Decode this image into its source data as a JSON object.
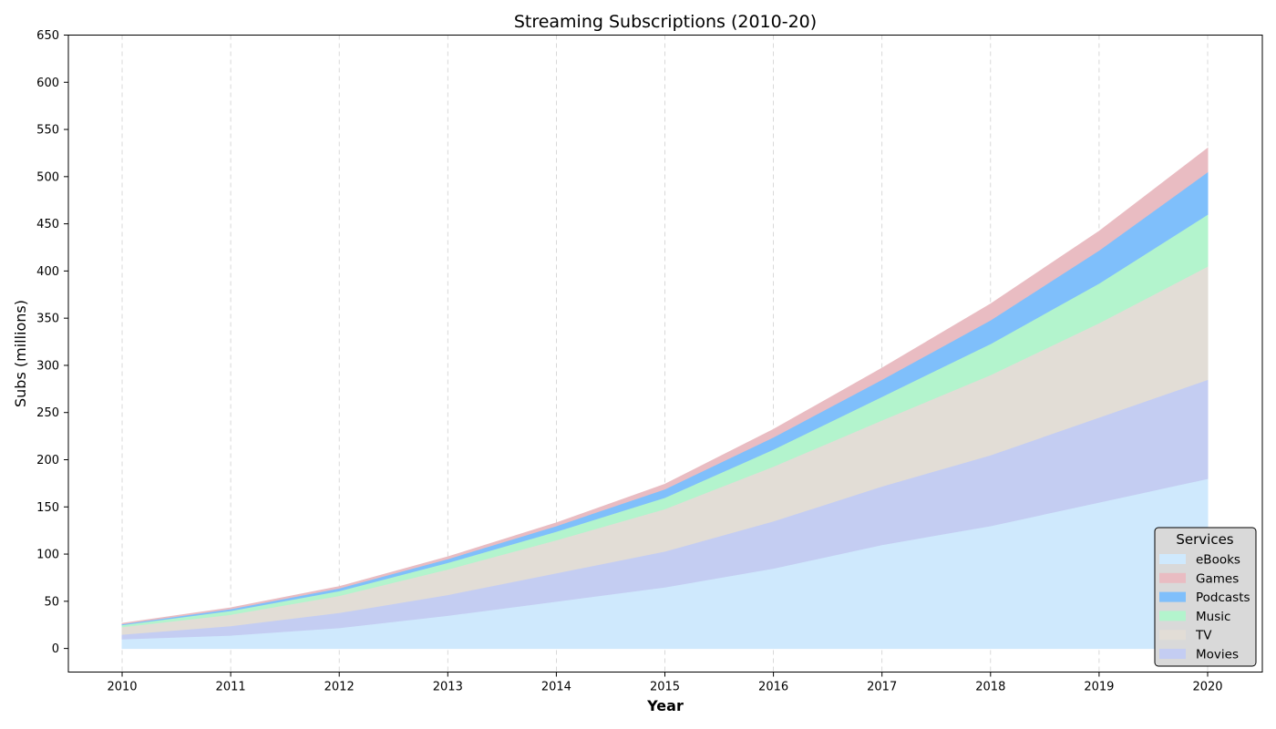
{
  "chart_data": {
    "type": "area",
    "stacked": true,
    "title": "Streaming Subscriptions (2010-20)",
    "xlabel": "Year",
    "ylabel": "Subs (millions)",
    "x": [
      2010,
      2011,
      2012,
      2013,
      2014,
      2015,
      2016,
      2017,
      2018,
      2019,
      2020
    ],
    "xticks": [
      "2010",
      "2011",
      "2012",
      "2013",
      "2014",
      "2015",
      "2016",
      "2017",
      "2018",
      "2019",
      "2020"
    ],
    "ylim": [
      -25,
      650
    ],
    "yticks": [
      0,
      50,
      100,
      150,
      200,
      250,
      300,
      350,
      400,
      450,
      500,
      550,
      600,
      650
    ],
    "grid": "vertical dashed",
    "legend": {
      "title": "Services",
      "position": "bottom-right"
    },
    "series": [
      {
        "name": "eBooks",
        "color": "#cfe9fd",
        "values": [
          10,
          14,
          22,
          35,
          50,
          65,
          85,
          110,
          130,
          155,
          180
        ]
      },
      {
        "name": "Movies",
        "color": "#c4cdf2",
        "values": [
          5,
          10,
          16,
          22,
          30,
          38,
          50,
          62,
          75,
          90,
          105
        ]
      },
      {
        "name": "TV",
        "color": "#e2ddd6",
        "values": [
          8,
          12,
          18,
          27,
          35,
          45,
          58,
          70,
          85,
          100,
          120
        ]
      },
      {
        "name": "Music",
        "color": "#b3f4cd",
        "values": [
          2,
          4,
          5,
          7,
          9,
          12,
          18,
          25,
          33,
          42,
          55
        ]
      },
      {
        "name": "Podcasts",
        "color": "#7fbffb",
        "values": [
          1,
          2,
          3,
          4,
          6,
          9,
          13,
          18,
          25,
          35,
          45
        ]
      },
      {
        "name": "Games",
        "color": "#e9bcc2",
        "values": [
          0.5,
          1,
          1.5,
          2,
          3,
          5,
          8,
          12,
          17,
          20,
          25
        ]
      }
    ],
    "legend_order": [
      "eBooks",
      "Games",
      "Podcasts",
      "Music",
      "TV",
      "Movies"
    ]
  }
}
